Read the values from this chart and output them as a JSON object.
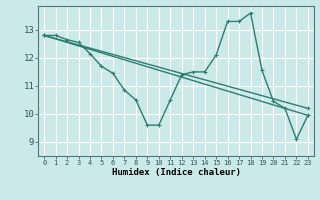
{
  "xlabel": "Humidex (Indice chaleur)",
  "background_color": "#cce9e9",
  "grid_color": "#ffffff",
  "line_color": "#2d7d6e",
  "xlim": [
    -0.5,
    23.5
  ],
  "ylim": [
    8.5,
    13.85
  ],
  "yticks": [
    9,
    10,
    11,
    12,
    13
  ],
  "xticks": [
    0,
    1,
    2,
    3,
    4,
    5,
    6,
    7,
    8,
    9,
    10,
    11,
    12,
    13,
    14,
    15,
    16,
    17,
    18,
    19,
    20,
    21,
    22,
    23
  ],
  "series1_x": [
    0,
    1,
    2,
    3,
    4,
    5,
    6,
    7,
    8,
    9,
    10,
    11,
    12,
    13,
    14,
    15,
    16,
    17,
    18,
    19,
    20,
    21,
    22,
    23
  ],
  "series1_y": [
    12.8,
    12.8,
    12.65,
    12.55,
    12.15,
    11.7,
    11.45,
    10.85,
    10.5,
    9.6,
    9.6,
    10.5,
    11.4,
    11.5,
    11.5,
    12.1,
    13.3,
    13.3,
    13.6,
    11.55,
    10.45,
    10.2,
    9.1,
    9.95
  ],
  "series2_x": [
    0,
    23
  ],
  "series2_y": [
    12.8,
    9.95
  ],
  "series3_x": [
    0,
    23
  ],
  "series3_y": [
    12.8,
    10.2
  ],
  "marker_size": 3,
  "linewidth": 1.0
}
